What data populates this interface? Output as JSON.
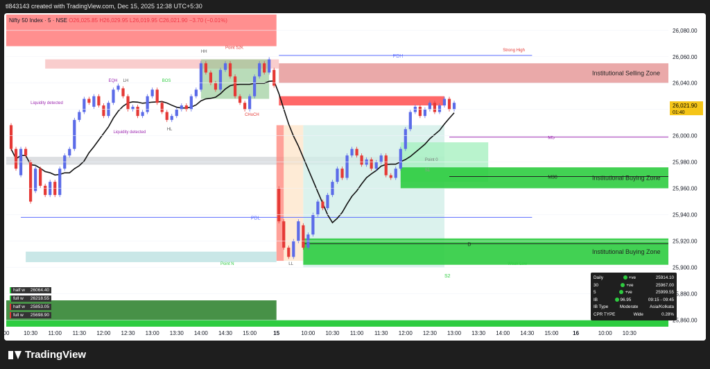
{
  "header": {
    "credit": "tl843143 created with TradingView.com, Dec 15, 2025 12:38 UTC+5:30"
  },
  "legend": {
    "symbol": "Nifty 50 Index · 5 · NSE",
    "o": "O26,025.85",
    "h": "H26,029.95",
    "l": "L26,019.95",
    "c": "C26,021.90",
    "chg": "−3.70 (−0.01%)"
  },
  "footer": {
    "brand": "TradingView"
  },
  "colors": {
    "up": "#5b6be8",
    "down": "#e53935",
    "bg": "#ffffff",
    "axis": "#131722",
    "grid": "#f0f3fa"
  },
  "chart_data": {
    "type": "candlestick",
    "y_range": [
      25855,
      26092
    ],
    "y_ticks": [
      "26,080.00",
      "26,060.00",
      "26,040.00",
      "26,020.00",
      "26,000.00",
      "25,980.00",
      "25,960.00",
      "25,940.00",
      "25,920.00",
      "25,900.00",
      "25,880.00",
      "25,860.00"
    ],
    "y_tick_values": [
      26080,
      26060,
      26040,
      26020,
      26000,
      25980,
      25960,
      25940,
      25920,
      25900,
      25880,
      25860
    ],
    "x_range": [
      0,
      136
    ],
    "x_ticks": [
      "00",
      "10:30",
      "11:00",
      "11:30",
      "12:00",
      "12:30",
      "13:00",
      "13:30",
      "14:00",
      "14:30",
      "15:00",
      "15",
      "10:00",
      "10:30",
      "11:00",
      "11:30",
      "12:00",
      "12:30",
      "13:00",
      "13:30",
      "14:00",
      "14:30",
      "15:00",
      "16",
      "10:00",
      "10:30"
    ],
    "x_tick_positions": [
      0,
      5,
      10,
      15,
      20,
      25,
      30,
      35,
      40,
      45,
      50,
      55.5,
      62,
      67,
      72,
      77,
      82,
      87,
      92,
      97,
      102,
      107,
      112,
      117,
      123,
      128
    ],
    "price_label": {
      "price": "26,021.90",
      "timer": "01:40",
      "value": 26021.9
    },
    "candles": [
      [
        1,
        26008,
        25990
      ],
      [
        2,
        25990,
        25975
      ],
      [
        3,
        25970,
        25990
      ],
      [
        4,
        25990,
        25985
      ],
      [
        5,
        25980,
        25950
      ],
      [
        6,
        25958,
        25975
      ],
      [
        7,
        25975,
        25962
      ],
      [
        8,
        25962,
        25955
      ],
      [
        9,
        25955,
        25965
      ],
      [
        10,
        25965,
        25955
      ],
      [
        11,
        25955,
        25975
      ],
      [
        12,
        25975,
        25985
      ],
      [
        13,
        25985,
        25990
      ],
      [
        14,
        25990,
        26012
      ],
      [
        15,
        26012,
        26018
      ],
      [
        16,
        26018,
        26028
      ],
      [
        17,
        26028,
        26025
      ],
      [
        18,
        26022,
        26030
      ],
      [
        19,
        26030,
        26023
      ],
      [
        20,
        26023,
        26015
      ],
      [
        21,
        26015,
        26025
      ],
      [
        22,
        26025,
        26035
      ],
      [
        23,
        26035,
        26038
      ],
      [
        24,
        26036,
        26030
      ],
      [
        25,
        26030,
        26020
      ],
      [
        26,
        26020,
        26022
      ],
      [
        27,
        26022,
        26015
      ],
      [
        28,
        26015,
        26018
      ],
      [
        29,
        26018,
        26030
      ],
      [
        30,
        26030,
        26035
      ],
      [
        31,
        26035,
        26025
      ],
      [
        32,
        26025,
        26018
      ],
      [
        33,
        26018,
        26012
      ],
      [
        34,
        26012,
        26015
      ],
      [
        35,
        26015,
        26020
      ],
      [
        36,
        26020,
        26023
      ],
      [
        37,
        26023,
        26020
      ],
      [
        38,
        26020,
        26030
      ],
      [
        39,
        26030,
        26035
      ],
      [
        40,
        26035,
        26055
      ],
      [
        41,
        26055,
        26048
      ],
      [
        42,
        26048,
        26040
      ],
      [
        43,
        26040,
        26035
      ],
      [
        44,
        26035,
        26050
      ],
      [
        45,
        26050,
        26055
      ],
      [
        46,
        26055,
        26045
      ],
      [
        47,
        26045,
        26030
      ],
      [
        48,
        26030,
        26025
      ],
      [
        49,
        26025,
        26020
      ],
      [
        50,
        26020,
        26030
      ],
      [
        51,
        26030,
        26045
      ],
      [
        52,
        26045,
        26055
      ],
      [
        53,
        26055,
        26048
      ],
      [
        54,
        26048,
        26058
      ],
      [
        55,
        26050,
        26038
      ],
      [
        56,
        25960,
        25935
      ],
      [
        57,
        25935,
        25915
      ],
      [
        58,
        25915,
        25908
      ],
      [
        59,
        25908,
        25920
      ],
      [
        60,
        25920,
        25935
      ],
      [
        61,
        25932,
        25915
      ],
      [
        62,
        25915,
        25925
      ],
      [
        63,
        25925,
        25940
      ],
      [
        64,
        25940,
        25950
      ],
      [
        65,
        25950,
        25945
      ],
      [
        66,
        25945,
        25955
      ],
      [
        67,
        25955,
        25965
      ],
      [
        68,
        25965,
        25975
      ],
      [
        69,
        25975,
        25968
      ],
      [
        70,
        25968,
        25985
      ],
      [
        71,
        25985,
        25990
      ],
      [
        72,
        25990,
        25985
      ],
      [
        73,
        25985,
        25978
      ],
      [
        74,
        25978,
        25982
      ],
      [
        75,
        25982,
        25975
      ],
      [
        76,
        25975,
        25980
      ],
      [
        77,
        25980,
        25985
      ],
      [
        78,
        25985,
        25970
      ],
      [
        79,
        25970,
        25968
      ],
      [
        80,
        25968,
        25975
      ],
      [
        81,
        25975,
        25990
      ],
      [
        82,
        25990,
        26005
      ],
      [
        83,
        26005,
        26018
      ],
      [
        84,
        26018,
        26022
      ],
      [
        85,
        26022,
        26015
      ],
      [
        86,
        26015,
        26020
      ],
      [
        87,
        26020,
        26025
      ],
      [
        88,
        26025,
        26018
      ],
      [
        89,
        26018,
        26023
      ],
      [
        90,
        26023,
        26028
      ],
      [
        91,
        26028,
        26020
      ],
      [
        92,
        26020,
        26025
      ]
    ],
    "zones": [
      {
        "label": "Institutional Selling Zone",
        "x0": 56,
        "x1": 136,
        "y0": 26040,
        "y1": 26055,
        "color": "#e8a0a0"
      },
      {
        "label": "Institutional Buying Zone",
        "x0": 81,
        "x1": 136,
        "y0": 25960,
        "y1": 25976,
        "color": "#2ecc40"
      },
      {
        "label": "Institutional Buying Zone",
        "x0": 61,
        "x1": 136,
        "y0": 25902,
        "y1": 25922,
        "color": "#2ecc40"
      }
    ],
    "levels": [
      {
        "label": "PDH",
        "y": 26061,
        "x0": 56,
        "x1": 108,
        "color": "#5a6cff"
      },
      {
        "label": "PDL",
        "y": 25938,
        "x0": 3,
        "x1": 108,
        "color": "#5a6cff"
      },
      {
        "label": "M5",
        "y": 25999,
        "x0": 91,
        "x1": 136,
        "color": "#9c27b0"
      },
      {
        "label": "M30",
        "y": 25969,
        "x0": 91,
        "x1": 136,
        "color": "#222222"
      },
      {
        "label": "D",
        "y": 25918,
        "x0": 61,
        "x1": 136,
        "color": "#222222"
      },
      {
        "label": "S2",
        "y": 25894,
        "x0": 90,
        "x1": 90,
        "color": "#2ecc40"
      }
    ],
    "annotations": [
      "Point 52K",
      "Liquidity detected",
      "Liquidity detected",
      "Point 0",
      "Point N",
      "Weak Low",
      "Strong High",
      "EQH",
      "LH",
      "BOS",
      "HH",
      "HL",
      "LL",
      "CHoCH",
      "S1"
    ],
    "hl_boxes": [
      {
        "label": "half w",
        "value": "26064.40",
        "color": "#2ecc40"
      },
      {
        "label": "full w",
        "value": "26218.55",
        "color": "#2ecc40"
      },
      {
        "label": "half w",
        "value": "25853.05",
        "color": "#e53935"
      },
      {
        "label": "full w",
        "value": "25698.90",
        "color": "#e53935"
      }
    ],
    "stats_table": {
      "rows": [
        [
          "Daily",
          "+ve",
          "25914.10"
        ],
        [
          "30",
          "+ve",
          "25967.00"
        ],
        [
          "5",
          "+ve",
          "25999.55"
        ],
        [
          "IB",
          "96.95",
          "09:15 - 09:45"
        ],
        [
          "IB Type",
          "Moderate",
          "Asia/Kolkata"
        ],
        [
          "CPR TYPE",
          "Wide",
          "0.28%"
        ]
      ]
    }
  }
}
